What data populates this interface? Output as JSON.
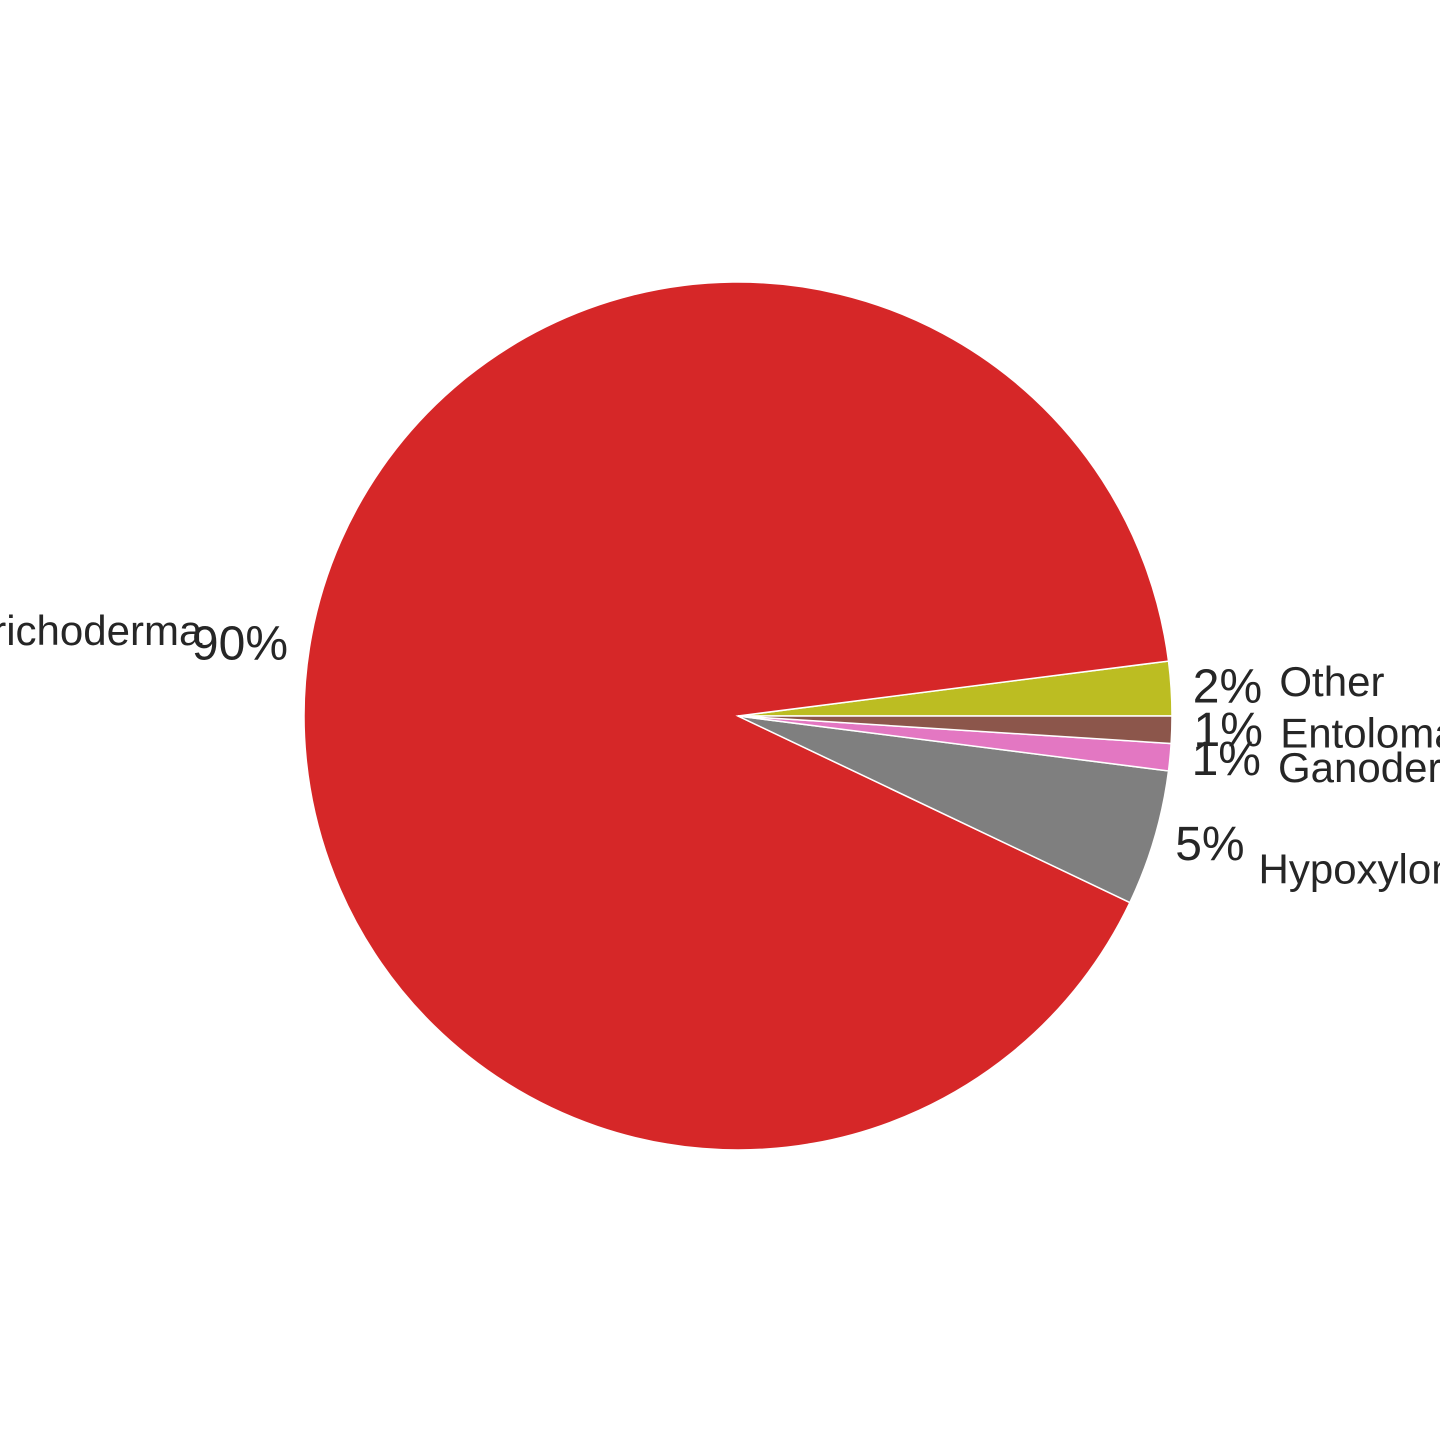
{
  "chart_data": {
    "type": "pie",
    "title": "",
    "start_angle_deg": 0,
    "direction": "counterclockwise",
    "slices": [
      {
        "label": "Other",
        "value": 2,
        "pct_label": "2%",
        "color": "#bcbd22"
      },
      {
        "label": "Trichoderma",
        "value": 90,
        "pct_label": "90%",
        "color": "#d62728"
      },
      {
        "label": "Hypoxylon",
        "value": 5,
        "pct_label": "5%",
        "color": "#7f7f7f"
      },
      {
        "label": "Ganoderma",
        "value": 1,
        "pct_label": "1%",
        "color": "#e377c2"
      },
      {
        "label": "Entoloma",
        "value": 1,
        "pct_label": "1%",
        "color": "#8c564b"
      }
    ]
  }
}
